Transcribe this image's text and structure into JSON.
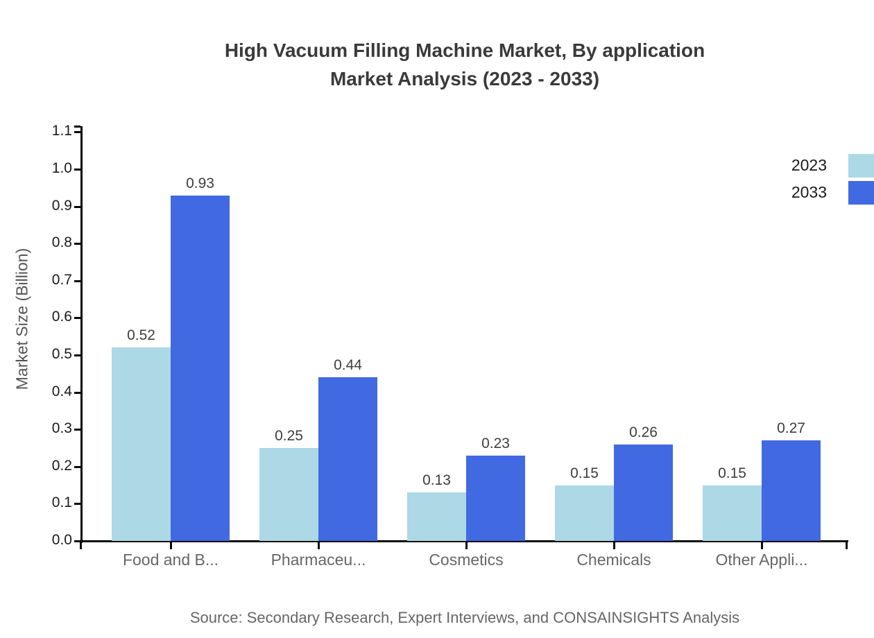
{
  "title": {
    "line1": "High Vacuum Filling Machine Market, By application",
    "line2": "Market Analysis (2023 - 2033)"
  },
  "y_axis": {
    "label": "Market Size (Billion)",
    "tick_labels": [
      "0.0",
      "0.1",
      "0.2",
      "0.3",
      "0.4",
      "0.5",
      "0.6",
      "0.7",
      "0.8",
      "0.9",
      "1.0",
      "1.1"
    ]
  },
  "legend": {
    "position": "right-top",
    "items": [
      {
        "label": "2023",
        "color": "#ADD8E6"
      },
      {
        "label": "2033",
        "color": "#4169E1"
      }
    ]
  },
  "source": "Source: Secondary Research, Expert Interviews, and CONSAINSIGHTS Analysis",
  "colors": {
    "series_2023": "#ADD8E6",
    "series_2033": "#4169E1",
    "title_text": "#3a3a3a",
    "axis_text": "#1a1a1a",
    "muted_text": "#666666"
  },
  "chart_data": {
    "type": "bar",
    "categories": [
      "Food and B...",
      "Pharmaceu...",
      "Cosmetics",
      "Chemicals",
      "Other Appli..."
    ],
    "series": [
      {
        "name": "2023",
        "color": "#ADD8E6",
        "values": [
          0.52,
          0.25,
          0.13,
          0.15,
          0.15
        ]
      },
      {
        "name": "2033",
        "color": "#4169E1",
        "values": [
          0.93,
          0.44,
          0.23,
          0.26,
          0.27
        ]
      }
    ],
    "title": "High Vacuum Filling Machine Market, By application Market Analysis (2023 - 2033)",
    "xlabel": "",
    "ylabel": "Market Size (Billion)",
    "ylim": [
      0,
      1.1
    ],
    "ytick_step": 0.1,
    "grid": false,
    "legend_position": "right-top",
    "value_labels": true
  }
}
